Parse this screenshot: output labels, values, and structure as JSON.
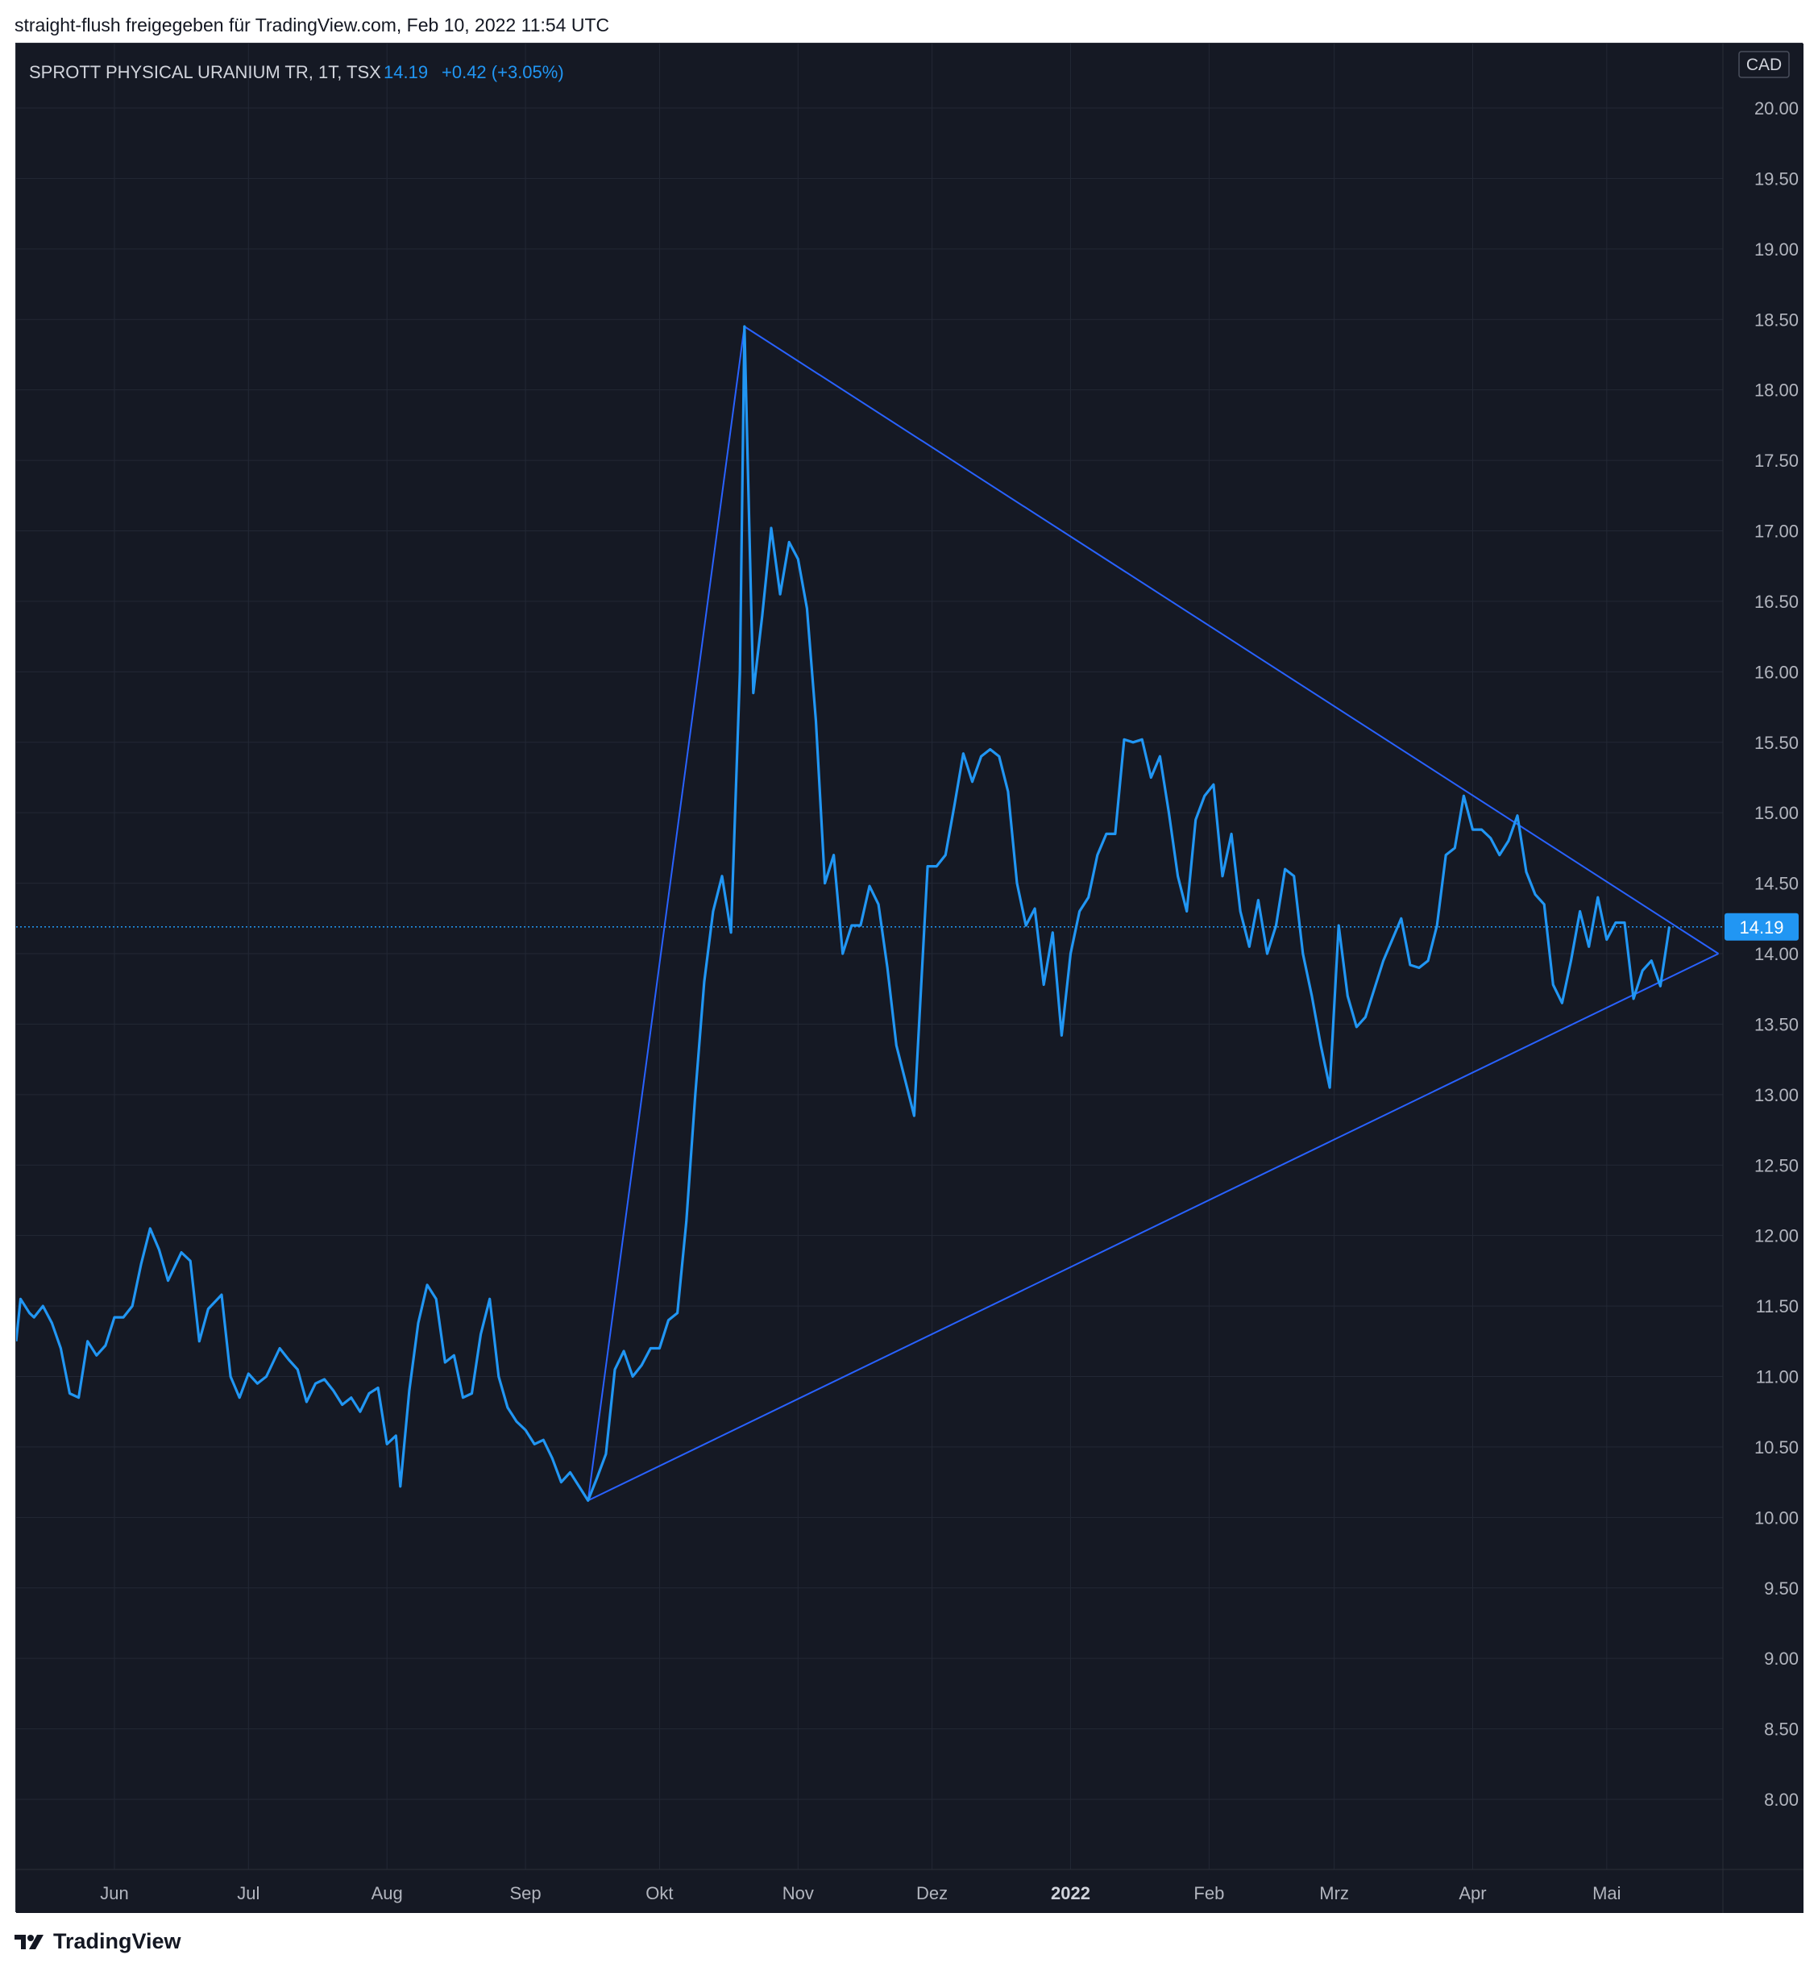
{
  "header": {
    "shared_by": "straight-flush freigegeben für TradingView.com, Feb 10, 2022 11:54 UTC"
  },
  "footer": {
    "brand": "TradingView"
  },
  "legend": {
    "symbol": "SPROTT PHYSICAL URANIUM TR, 1T, TSX",
    "last": "14.19",
    "change": "+0.42 (+3.05%)"
  },
  "currency": "CAD",
  "colors": {
    "background": "#151924",
    "grid": "#232835",
    "line": "#2196f3",
    "trendline": "#2962ff",
    "axis_text": "#b2b5be",
    "price_label_bg": "#2196f3"
  },
  "chart_data": {
    "type": "line",
    "title": "SPROTT PHYSICAL URANIUM TR, 1T, TSX",
    "ylabel": "",
    "xlabel": "",
    "ylim": [
      7.6,
      20.25
    ],
    "yticks": [
      "20.00",
      "19.50",
      "19.00",
      "18.50",
      "18.00",
      "17.50",
      "17.00",
      "16.50",
      "16.00",
      "15.50",
      "15.00",
      "14.50",
      "14.00",
      "13.50",
      "13.00",
      "12.50",
      "12.00",
      "11.50",
      "11.00",
      "10.50",
      "10.00",
      "9.50",
      "9.00",
      "8.50",
      "8.00"
    ],
    "xlim": [
      "2021-05-10",
      "2022-05-27"
    ],
    "xticks": [
      {
        "label": "Jun",
        "date": "2021-06-01",
        "bold": false
      },
      {
        "label": "Jul",
        "date": "2021-07-01",
        "bold": false
      },
      {
        "label": "Aug",
        "date": "2021-08-01",
        "bold": false
      },
      {
        "label": "Sep",
        "date": "2021-09-01",
        "bold": false
      },
      {
        "label": "Okt",
        "date": "2021-10-01",
        "bold": false
      },
      {
        "label": "Nov",
        "date": "2021-11-01",
        "bold": false
      },
      {
        "label": "Dez",
        "date": "2021-12-01",
        "bold": false
      },
      {
        "label": "2022",
        "date": "2022-01-01",
        "bold": true
      },
      {
        "label": "Feb",
        "date": "2022-02-01",
        "bold": false
      },
      {
        "label": "Mrz",
        "date": "2022-03-01",
        "bold": false
      },
      {
        "label": "Apr",
        "date": "2022-04-01",
        "bold": false
      },
      {
        "label": "Mai",
        "date": "2022-05-01",
        "bold": false
      }
    ],
    "grid": true,
    "last_price": 14.19,
    "series": [
      {
        "values": [
          [
            "2021-05-10",
            11.25
          ],
          [
            "2021-05-11",
            11.55
          ],
          [
            "2021-05-13",
            11.45
          ],
          [
            "2021-05-14",
            11.42
          ],
          [
            "2021-05-16",
            11.5
          ],
          [
            "2021-05-18",
            11.38
          ],
          [
            "2021-05-20",
            11.2
          ],
          [
            "2021-05-22",
            10.88
          ],
          [
            "2021-05-24",
            10.85
          ],
          [
            "2021-05-26",
            11.25
          ],
          [
            "2021-05-28",
            11.15
          ],
          [
            "2021-05-30",
            11.22
          ],
          [
            "2021-06-01",
            11.42
          ],
          [
            "2021-06-03",
            11.42
          ],
          [
            "2021-06-05",
            11.5
          ],
          [
            "2021-06-07",
            11.8
          ],
          [
            "2021-06-09",
            12.05
          ],
          [
            "2021-06-11",
            11.9
          ],
          [
            "2021-06-13",
            11.68
          ],
          [
            "2021-06-16",
            11.88
          ],
          [
            "2021-06-18",
            11.82
          ],
          [
            "2021-06-20",
            11.25
          ],
          [
            "2021-06-22",
            11.48
          ],
          [
            "2021-06-25",
            11.58
          ],
          [
            "2021-06-27",
            11.0
          ],
          [
            "2021-06-29",
            10.85
          ],
          [
            "2021-07-01",
            11.02
          ],
          [
            "2021-07-03",
            10.95
          ],
          [
            "2021-07-05",
            11.0
          ],
          [
            "2021-07-08",
            11.2
          ],
          [
            "2021-07-10",
            11.12
          ],
          [
            "2021-07-12",
            11.05
          ],
          [
            "2021-07-14",
            10.82
          ],
          [
            "2021-07-16",
            10.95
          ],
          [
            "2021-07-18",
            10.98
          ],
          [
            "2021-07-20",
            10.9
          ],
          [
            "2021-07-22",
            10.8
          ],
          [
            "2021-07-24",
            10.85
          ],
          [
            "2021-07-26",
            10.75
          ],
          [
            "2021-07-28",
            10.88
          ],
          [
            "2021-07-30",
            10.92
          ],
          [
            "2021-08-01",
            10.52
          ],
          [
            "2021-08-03",
            10.58
          ],
          [
            "2021-08-04",
            10.22
          ],
          [
            "2021-08-06",
            10.9
          ],
          [
            "2021-08-08",
            11.38
          ],
          [
            "2021-08-10",
            11.65
          ],
          [
            "2021-08-12",
            11.55
          ],
          [
            "2021-08-14",
            11.1
          ],
          [
            "2021-08-16",
            11.15
          ],
          [
            "2021-08-18",
            10.85
          ],
          [
            "2021-08-20",
            10.88
          ],
          [
            "2021-08-22",
            11.3
          ],
          [
            "2021-08-24",
            11.55
          ],
          [
            "2021-08-26",
            11.0
          ],
          [
            "2021-08-28",
            10.78
          ],
          [
            "2021-08-30",
            10.68
          ],
          [
            "2021-09-01",
            10.62
          ],
          [
            "2021-09-03",
            10.52
          ],
          [
            "2021-09-05",
            10.55
          ],
          [
            "2021-09-07",
            10.42
          ],
          [
            "2021-09-09",
            10.25
          ],
          [
            "2021-09-11",
            10.32
          ],
          [
            "2021-09-13",
            10.22
          ],
          [
            "2021-09-15",
            10.12
          ],
          [
            "2021-09-17",
            10.28
          ],
          [
            "2021-09-19",
            10.45
          ],
          [
            "2021-09-21",
            11.05
          ],
          [
            "2021-09-23",
            11.18
          ],
          [
            "2021-09-25",
            11.0
          ],
          [
            "2021-09-27",
            11.08
          ],
          [
            "2021-09-29",
            11.2
          ],
          [
            "2021-10-01",
            11.2
          ],
          [
            "2021-10-03",
            11.4
          ],
          [
            "2021-10-05",
            11.45
          ],
          [
            "2021-10-07",
            12.1
          ],
          [
            "2021-10-09",
            13.0
          ],
          [
            "2021-10-11",
            13.8
          ],
          [
            "2021-10-13",
            14.3
          ],
          [
            "2021-10-15",
            14.55
          ],
          [
            "2021-10-17",
            14.15
          ],
          [
            "2021-10-19",
            16.0
          ],
          [
            "2021-10-20",
            18.45
          ],
          [
            "2021-10-22",
            15.85
          ],
          [
            "2021-10-24",
            16.4
          ],
          [
            "2021-10-26",
            17.02
          ],
          [
            "2021-10-28",
            16.55
          ],
          [
            "2021-10-30",
            16.92
          ],
          [
            "2021-11-01",
            16.8
          ],
          [
            "2021-11-03",
            16.45
          ],
          [
            "2021-11-05",
            15.65
          ],
          [
            "2021-11-07",
            14.5
          ],
          [
            "2021-11-09",
            14.7
          ],
          [
            "2021-11-11",
            14.0
          ],
          [
            "2021-11-13",
            14.2
          ],
          [
            "2021-11-15",
            14.2
          ],
          [
            "2021-11-17",
            14.48
          ],
          [
            "2021-11-19",
            14.35
          ],
          [
            "2021-11-21",
            13.9
          ],
          [
            "2021-11-23",
            13.35
          ],
          [
            "2021-11-25",
            13.1
          ],
          [
            "2021-11-27",
            12.85
          ],
          [
            "2021-11-30",
            14.62
          ],
          [
            "2021-12-02",
            14.62
          ],
          [
            "2021-12-04",
            14.7
          ],
          [
            "2021-12-06",
            15.05
          ],
          [
            "2021-12-08",
            15.42
          ],
          [
            "2021-12-10",
            15.22
          ],
          [
            "2021-12-12",
            15.4
          ],
          [
            "2021-12-14",
            15.45
          ],
          [
            "2021-12-16",
            15.4
          ],
          [
            "2021-12-18",
            15.15
          ],
          [
            "2021-12-20",
            14.5
          ],
          [
            "2021-12-22",
            14.2
          ],
          [
            "2021-12-24",
            14.32
          ],
          [
            "2021-12-26",
            13.78
          ],
          [
            "2021-12-28",
            14.15
          ],
          [
            "2021-12-30",
            13.42
          ],
          [
            "2022-01-01",
            14.0
          ],
          [
            "2022-01-03",
            14.3
          ],
          [
            "2022-01-05",
            14.4
          ],
          [
            "2022-01-07",
            14.7
          ],
          [
            "2022-01-09",
            14.85
          ],
          [
            "2022-01-11",
            14.85
          ],
          [
            "2022-01-13",
            15.52
          ],
          [
            "2022-01-15",
            15.5
          ],
          [
            "2022-01-17",
            15.52
          ],
          [
            "2022-01-19",
            15.25
          ],
          [
            "2022-01-21",
            15.4
          ],
          [
            "2022-01-23",
            15.0
          ],
          [
            "2022-01-25",
            14.55
          ],
          [
            "2022-01-27",
            14.3
          ],
          [
            "2022-01-29",
            14.95
          ],
          [
            "2022-01-31",
            15.12
          ],
          [
            "2022-02-02",
            15.2
          ],
          [
            "2022-02-04",
            14.55
          ],
          [
            "2022-02-06",
            14.85
          ],
          [
            "2022-02-08",
            14.3
          ],
          [
            "2022-02-10",
            14.05
          ],
          [
            "2022-02-12",
            14.38
          ],
          [
            "2022-02-14",
            14.0
          ],
          [
            "2022-02-16",
            14.2
          ],
          [
            "2022-02-18",
            14.6
          ],
          [
            "2022-02-20",
            14.55
          ],
          [
            "2022-02-22",
            14.0
          ],
          [
            "2022-02-24",
            13.7
          ],
          [
            "2022-02-26",
            13.35
          ],
          [
            "2022-02-28",
            13.05
          ],
          [
            "2022-03-02",
            14.2
          ],
          [
            "2022-03-04",
            13.7
          ],
          [
            "2022-03-06",
            13.48
          ],
          [
            "2022-03-08",
            13.55
          ],
          [
            "2022-03-10",
            13.75
          ],
          [
            "2022-03-12",
            13.95
          ],
          [
            "2022-03-14",
            14.1
          ],
          [
            "2022-03-16",
            14.25
          ],
          [
            "2022-03-18",
            13.92
          ],
          [
            "2022-03-20",
            13.9
          ],
          [
            "2022-03-22",
            13.95
          ],
          [
            "2022-03-24",
            14.2
          ],
          [
            "2022-03-26",
            14.7
          ],
          [
            "2022-03-28",
            14.75
          ],
          [
            "2022-03-30",
            15.12
          ],
          [
            "2022-04-01",
            14.88
          ],
          [
            "2022-04-03",
            14.88
          ],
          [
            "2022-04-05",
            14.82
          ],
          [
            "2022-04-07",
            14.7
          ],
          [
            "2022-04-09",
            14.8
          ],
          [
            "2022-04-11",
            14.98
          ],
          [
            "2022-04-13",
            14.58
          ],
          [
            "2022-04-15",
            14.42
          ],
          [
            "2022-04-17",
            14.35
          ],
          [
            "2022-04-19",
            13.78
          ],
          [
            "2022-04-21",
            13.65
          ],
          [
            "2022-04-23",
            13.95
          ],
          [
            "2022-04-25",
            14.3
          ],
          [
            "2022-04-27",
            14.05
          ],
          [
            "2022-04-29",
            14.4
          ],
          [
            "2022-05-01",
            14.1
          ],
          [
            "2022-05-03",
            14.22
          ],
          [
            "2022-05-05",
            14.22
          ],
          [
            "2022-05-07",
            13.68
          ],
          [
            "2022-05-09",
            13.88
          ],
          [
            "2022-05-11",
            13.95
          ],
          [
            "2022-05-13",
            13.77
          ],
          [
            "2022-05-15",
            14.19
          ]
        ]
      }
    ],
    "trendlines": [
      {
        "points": [
          [
            "2021-09-15",
            10.12
          ],
          [
            "2021-10-20",
            18.45
          ]
        ]
      },
      {
        "points": [
          [
            "2021-10-20",
            18.45
          ],
          [
            "2022-05-26",
            14.0
          ]
        ]
      },
      {
        "points": [
          [
            "2021-09-15",
            10.12
          ],
          [
            "2022-05-26",
            14.0
          ]
        ]
      }
    ]
  }
}
